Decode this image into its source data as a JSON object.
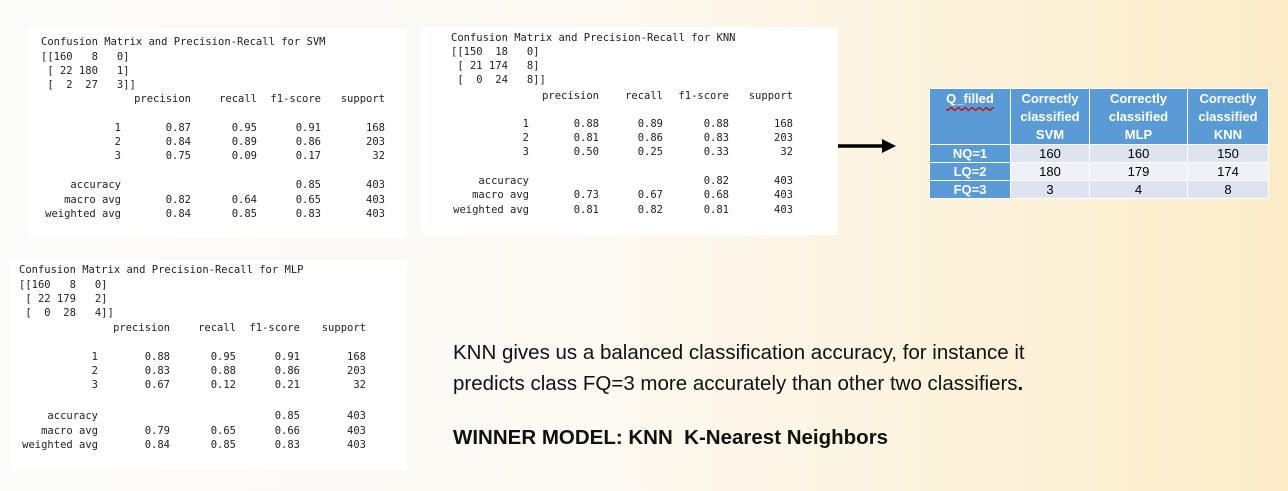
{
  "svm_report": {
    "title": "Confusion Matrix and Precision-Recall for SVM",
    "matrix": [
      "[[160   8   0]",
      " [ 22 180   1]",
      " [  2  27   3]]"
    ],
    "headers": [
      "precision",
      "recall",
      "f1-score",
      "support"
    ],
    "rows": [
      {
        "label": "1",
        "precision": "0.87",
        "recall": "0.95",
        "f1": "0.91",
        "support": "168"
      },
      {
        "label": "2",
        "precision": "0.84",
        "recall": "0.89",
        "f1": "0.86",
        "support": "203"
      },
      {
        "label": "3",
        "precision": "0.75",
        "recall": "0.09",
        "f1": "0.17",
        "support": "32"
      }
    ],
    "accuracy": {
      "label": "accuracy",
      "f1": "0.85",
      "support": "403"
    },
    "macro": {
      "label": "macro avg",
      "precision": "0.82",
      "recall": "0.64",
      "f1": "0.65",
      "support": "403"
    },
    "weighted": {
      "label": "weighted avg",
      "precision": "0.84",
      "recall": "0.85",
      "f1": "0.83",
      "support": "403"
    }
  },
  "knn_report": {
    "title": "Confusion Matrix and Precision-Recall for KNN",
    "matrix": [
      "[[150  18   0]",
      " [ 21 174   8]",
      " [  0  24   8]]"
    ],
    "headers": [
      "precision",
      "recall",
      "f1-score",
      "support"
    ],
    "rows": [
      {
        "label": "1",
        "precision": "0.88",
        "recall": "0.89",
        "f1": "0.88",
        "support": "168"
      },
      {
        "label": "2",
        "precision": "0.81",
        "recall": "0.86",
        "f1": "0.83",
        "support": "203"
      },
      {
        "label": "3",
        "precision": "0.50",
        "recall": "0.25",
        "f1": "0.33",
        "support": "32"
      }
    ],
    "accuracy": {
      "label": "accuracy",
      "f1": "0.82",
      "support": "403"
    },
    "macro": {
      "label": "macro avg",
      "precision": "0.73",
      "recall": "0.67",
      "f1": "0.68",
      "support": "403"
    },
    "weighted": {
      "label": "weighted avg",
      "precision": "0.81",
      "recall": "0.82",
      "f1": "0.81",
      "support": "403"
    }
  },
  "mlp_report": {
    "title": "Confusion Matrix and Precision-Recall for MLP",
    "matrix": [
      "[[160   8   0]",
      " [ 22 179   2]",
      " [  0  28   4]]"
    ],
    "headers": [
      "precision",
      "recall",
      "f1-score",
      "support"
    ],
    "rows": [
      {
        "label": "1",
        "precision": "0.88",
        "recall": "0.95",
        "f1": "0.91",
        "support": "168"
      },
      {
        "label": "2",
        "precision": "0.83",
        "recall": "0.88",
        "f1": "0.86",
        "support": "203"
      },
      {
        "label": "3",
        "precision": "0.67",
        "recall": "0.12",
        "f1": "0.21",
        "support": "32"
      }
    ],
    "accuracy": {
      "label": "accuracy",
      "f1": "0.85",
      "support": "403"
    },
    "macro": {
      "label": "macro avg",
      "precision": "0.79",
      "recall": "0.65",
      "f1": "0.66",
      "support": "403"
    },
    "weighted": {
      "label": "weighted avg",
      "precision": "0.84",
      "recall": "0.85",
      "f1": "0.83",
      "support": "403"
    }
  },
  "summary_table": {
    "headers": [
      "Q_filled",
      "Correctly classified SVM",
      "Correctly classified MLP",
      "Correctly classified KNN"
    ],
    "header_lines": [
      [
        "Q_filled"
      ],
      [
        "Correctly",
        "classified",
        "SVM"
      ],
      [
        "Correctly",
        "classified",
        "MLP"
      ],
      [
        "Correctly",
        "classified",
        "KNN"
      ]
    ],
    "rows": [
      {
        "label": "NQ=1",
        "svm": "160",
        "mlp": "160",
        "knn": "150"
      },
      {
        "label": "LQ=2",
        "svm": "180",
        "mlp": "179",
        "knn": "174"
      },
      {
        "label": "FQ=3",
        "svm": "3",
        "mlp": "4",
        "knn": "8"
      }
    ]
  },
  "description": {
    "line1": "KNN gives us a balanced classification accuracy, for instance it",
    "line2": "predicts class FQ=3 more accurately than other two classifiers",
    "line2_end": "."
  },
  "winner": "WINNER MODEL: KNN  K-Nearest Neighbors",
  "colors": {
    "table_header": "#5b9bd5",
    "row_light": "#eef1f8",
    "row_dark": "#dde4f0"
  }
}
